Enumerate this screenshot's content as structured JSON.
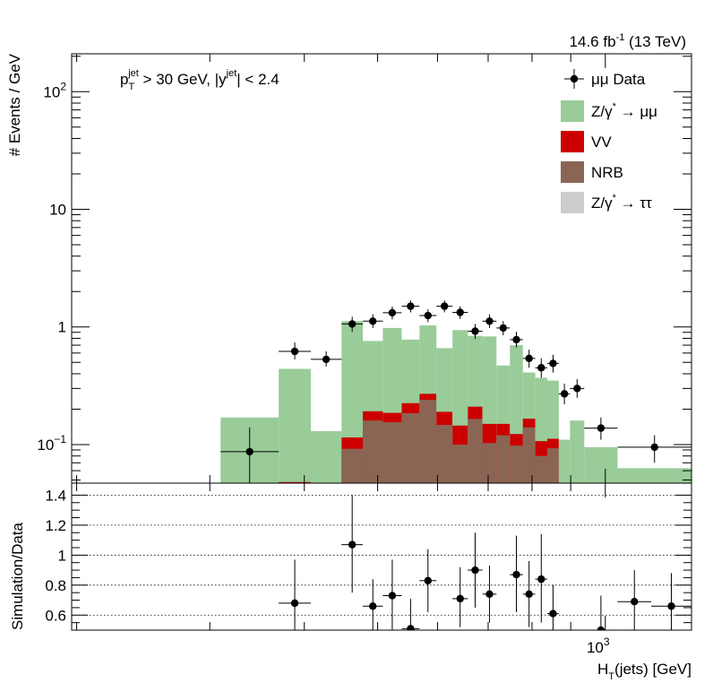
{
  "lumi_label": "14.6 fb",
  "lumi_sup": "-1",
  "lumi_energy": " (13 TeV)",
  "cut_label": {
    "p": "p",
    "p_sub": "T",
    "p_sup": "jet",
    "p_rest": " > 30 GeV,  |y",
    "y_sup": "jet",
    "y_rest": "| < 2.4"
  },
  "colors": {
    "zmumu": "#99cc99",
    "vv": "#cc0000",
    "nrb": "#8b6554",
    "ztautau": "#cccccc",
    "data": "#000000"
  },
  "chart_data": [
    {
      "type": "bar",
      "stacked": true,
      "yscale": "log",
      "ylabel": "# Events / GeV",
      "yticks": [
        {
          "v": 0.1,
          "base": "10",
          "sup": "−1"
        },
        {
          "v": 1,
          "base": "1",
          "sup": ""
        },
        {
          "v": 10,
          "base": "10",
          "sup": ""
        },
        {
          "v": 100,
          "base": "10",
          "sup": "2"
        }
      ],
      "ylim": [
        0.047,
        210
      ],
      "xscale": "log",
      "xlim": [
        197,
        1300
      ],
      "legend_position": "top-right",
      "legend": [
        {
          "key": "data",
          "label": "μμ Data"
        },
        {
          "key": "zmumu",
          "label": "Z/γ",
          "sup": "*",
          "rest": " → μμ"
        },
        {
          "key": "vv",
          "label": "VV"
        },
        {
          "key": "nrb",
          "label": "NRB"
        },
        {
          "key": "ztautau",
          "label": "Z/γ",
          "sup": "*",
          "rest": " → ττ"
        }
      ],
      "bins": [
        {
          "lo": 310,
          "hi": 370,
          "nrb": 0.0,
          "vv": 0.0,
          "total": 0.17
        },
        {
          "lo": 370,
          "hi": 408,
          "nrb": 0.0,
          "vv": 0.048,
          "total": 0.44
        },
        {
          "lo": 408,
          "hi": 448,
          "nrb": 0.0,
          "vv": 0.0,
          "total": 0.13
        },
        {
          "lo": 448,
          "hi": 478,
          "nrb": 0.092,
          "vv": 0.115,
          "total": 1.12
        },
        {
          "lo": 478,
          "hi": 508,
          "nrb": 0.16,
          "vv": 0.192,
          "total": 0.76
        },
        {
          "lo": 508,
          "hi": 538,
          "nrb": 0.155,
          "vv": 0.186,
          "total": 0.98
        },
        {
          "lo": 538,
          "hi": 568,
          "nrb": 0.185,
          "vv": 0.225,
          "total": 0.78
        },
        {
          "lo": 568,
          "hi": 598,
          "nrb": 0.24,
          "vv": 0.27,
          "total": 1.03
        },
        {
          "lo": 598,
          "hi": 628,
          "nrb": 0.147,
          "vv": 0.19,
          "total": 0.66
        },
        {
          "lo": 628,
          "hi": 658,
          "nrb": 0.1,
          "vv": 0.145,
          "total": 0.94
        },
        {
          "lo": 658,
          "hi": 688,
          "nrb": 0.165,
          "vv": 0.21,
          "total": 0.84
        },
        {
          "lo": 688,
          "hi": 718,
          "nrb": 0.103,
          "vv": 0.15,
          "total": 0.83
        },
        {
          "lo": 718,
          "hi": 748,
          "nrb": 0.12,
          "vv": 0.15,
          "total": 0.47
        },
        {
          "lo": 748,
          "hi": 778,
          "nrb": 0.098,
          "vv": 0.123,
          "total": 0.7
        },
        {
          "lo": 778,
          "hi": 808,
          "nrb": 0.14,
          "vv": 0.166,
          "total": 0.41
        },
        {
          "lo": 808,
          "hi": 838,
          "nrb": 0.08,
          "vv": 0.107,
          "total": 0.37
        },
        {
          "lo": 838,
          "hi": 868,
          "nrb": 0.093,
          "vv": 0.112,
          "total": 0.35
        },
        {
          "lo": 868,
          "hi": 898,
          "nrb": 0.0,
          "vv": 0.0,
          "total": 0.11
        },
        {
          "lo": 898,
          "hi": 938,
          "nrb": 0.0,
          "vv": 0.0,
          "total": 0.16
        },
        {
          "lo": 938,
          "hi": 1038,
          "nrb": 0.0,
          "vv": 0.0,
          "total": 0.095
        },
        {
          "lo": 1038,
          "hi": 1300,
          "nrb": 0.0,
          "vv": 0.0,
          "total": 0.063
        }
      ],
      "data_points": [
        {
          "lo": 310,
          "hi": 370,
          "y": 0.087,
          "ylo": 0.047,
          "yhi": 0.14
        },
        {
          "lo": 370,
          "hi": 408,
          "y": 0.62,
          "ylo": 0.53,
          "yhi": 0.74
        },
        {
          "lo": 408,
          "hi": 448,
          "y": 0.53,
          "ylo": 0.46,
          "yhi": 0.62
        },
        {
          "lo": 448,
          "hi": 478,
          "y": 1.06,
          "ylo": 0.91,
          "yhi": 1.22
        },
        {
          "lo": 478,
          "hi": 508,
          "y": 1.12,
          "ylo": 0.98,
          "yhi": 1.28
        },
        {
          "lo": 508,
          "hi": 538,
          "y": 1.32,
          "ylo": 1.16,
          "yhi": 1.49
        },
        {
          "lo": 538,
          "hi": 568,
          "y": 1.5,
          "ylo": 1.33,
          "yhi": 1.68
        },
        {
          "lo": 568,
          "hi": 598,
          "y": 1.25,
          "ylo": 1.1,
          "yhi": 1.41
        },
        {
          "lo": 598,
          "hi": 628,
          "y": 1.5,
          "ylo": 1.33,
          "yhi": 1.68
        },
        {
          "lo": 628,
          "hi": 658,
          "y": 1.33,
          "ylo": 1.17,
          "yhi": 1.5
        },
        {
          "lo": 658,
          "hi": 688,
          "y": 0.92,
          "ylo": 0.79,
          "yhi": 1.06
        },
        {
          "lo": 688,
          "hi": 718,
          "y": 1.12,
          "ylo": 0.98,
          "yhi": 1.28
        },
        {
          "lo": 718,
          "hi": 748,
          "y": 0.98,
          "ylo": 0.85,
          "yhi": 1.12
        },
        {
          "lo": 748,
          "hi": 778,
          "y": 0.78,
          "ylo": 0.67,
          "yhi": 0.91
        },
        {
          "lo": 778,
          "hi": 808,
          "y": 0.54,
          "ylo": 0.45,
          "yhi": 0.64
        },
        {
          "lo": 808,
          "hi": 838,
          "y": 0.45,
          "ylo": 0.37,
          "yhi": 0.54
        },
        {
          "lo": 838,
          "hi": 868,
          "y": 0.49,
          "ylo": 0.41,
          "yhi": 0.58
        },
        {
          "lo": 868,
          "hi": 898,
          "y": 0.27,
          "ylo": 0.22,
          "yhi": 0.33
        },
        {
          "lo": 898,
          "hi": 938,
          "y": 0.3,
          "ylo": 0.25,
          "yhi": 0.36
        },
        {
          "lo": 938,
          "hi": 1038,
          "y": 0.138,
          "ylo": 0.11,
          "yhi": 0.17
        },
        {
          "lo": 1038,
          "hi": 1300,
          "y": 0.095,
          "ylo": 0.07,
          "yhi": 0.12
        }
      ]
    },
    {
      "type": "scatter",
      "xlabel": "H",
      "xlabel_sub": "T",
      "xlabel_rest": "(jets) [GeV]",
      "x_major_tick": {
        "v": 1000,
        "base": "10",
        "sup": "3"
      },
      "ylabel": "Simulation/Data",
      "ylim": [
        0.5,
        1.48
      ],
      "yticks": [
        0.6,
        0.8,
        1,
        1.2,
        1.4
      ],
      "ytick_labels": [
        "0.6",
        "0.8",
        "1",
        "1.2",
        "1.4"
      ],
      "grid": true,
      "points": [
        {
          "lo": 370,
          "hi": 408,
          "y": 0.68,
          "ylo": 0.5,
          "yhi": 0.97
        },
        {
          "lo": 448,
          "hi": 478,
          "y": 1.07,
          "ylo": 0.75,
          "yhi": 1.4
        },
        {
          "lo": 478,
          "hi": 508,
          "y": 0.66,
          "ylo": 0.5,
          "yhi": 0.84
        },
        {
          "lo": 508,
          "hi": 538,
          "y": 0.73,
          "ylo": 0.5,
          "yhi": 0.97
        },
        {
          "lo": 538,
          "hi": 568,
          "y": 0.51,
          "ylo": 0.5,
          "yhi": 0.71
        },
        {
          "lo": 568,
          "hi": 598,
          "y": 0.83,
          "ylo": 0.62,
          "yhi": 1.04
        },
        {
          "lo": 628,
          "hi": 658,
          "y": 0.71,
          "ylo": 0.52,
          "yhi": 0.92
        },
        {
          "lo": 658,
          "hi": 688,
          "y": 0.9,
          "ylo": 0.65,
          "yhi": 1.15
        },
        {
          "lo": 688,
          "hi": 718,
          "y": 0.74,
          "ylo": 0.55,
          "yhi": 0.93
        },
        {
          "lo": 748,
          "hi": 778,
          "y": 0.87,
          "ylo": 0.62,
          "yhi": 1.13
        },
        {
          "lo": 778,
          "hi": 808,
          "y": 0.74,
          "ylo": 0.52,
          "yhi": 0.96
        },
        {
          "lo": 808,
          "hi": 838,
          "y": 0.84,
          "ylo": 0.55,
          "yhi": 1.14
        },
        {
          "lo": 838,
          "hi": 868,
          "y": 0.61,
          "ylo": 0.5,
          "yhi": 0.8
        },
        {
          "lo": 938,
          "hi": 1038,
          "y": 0.5,
          "ylo": 0.5,
          "yhi": 0.73
        },
        {
          "lo": 1038,
          "hi": 1150,
          "y": 0.69,
          "ylo": 0.5,
          "yhi": 0.9
        },
        {
          "lo": 1150,
          "hi": 1300,
          "y": 0.66,
          "ylo": 0.5,
          "yhi": 0.88
        }
      ]
    }
  ]
}
